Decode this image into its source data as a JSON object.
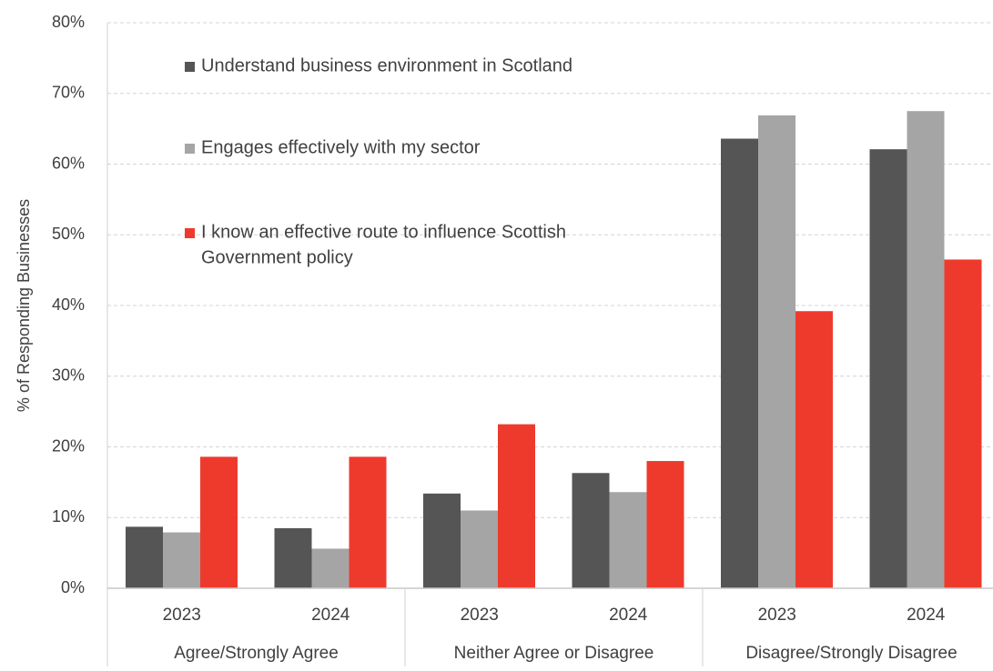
{
  "chart_data": {
    "type": "bar",
    "ylabel": "% of Responding Businesses",
    "ylim": [
      0,
      80
    ],
    "yticks": [
      "0%",
      "10%",
      "20%",
      "30%",
      "40%",
      "50%",
      "60%",
      "70%",
      "80%"
    ],
    "grid": true,
    "legend_position": "top-left",
    "groups": [
      {
        "label": "Agree/Strongly Agree",
        "years": [
          "2023",
          "2024"
        ]
      },
      {
        "label": "Neither Agree or Disagree",
        "years": [
          "2023",
          "2024"
        ]
      },
      {
        "label": "Disagree/Strongly Disagree",
        "years": [
          "2023",
          "2024"
        ]
      }
    ],
    "categories": [
      "2023",
      "2024",
      "2023",
      "2024",
      "2023",
      "2024"
    ],
    "series": [
      {
        "name": "Understand business environment in Scotland",
        "color": "#555555",
        "values": [
          8.7,
          8.5,
          13.4,
          16.3,
          63.6,
          62.1
        ]
      },
      {
        "name": "Engages effectively with my sector",
        "color": "#a5a5a5",
        "values": [
          7.9,
          5.6,
          11.0,
          13.6,
          66.9,
          67.5
        ]
      },
      {
        "name_lines": [
          "I know an effective route to influence Scottish",
          "Government policy"
        ],
        "color": "#ee3a2d",
        "values": [
          18.6,
          18.6,
          23.2,
          18.0,
          39.2,
          46.5
        ]
      }
    ]
  }
}
